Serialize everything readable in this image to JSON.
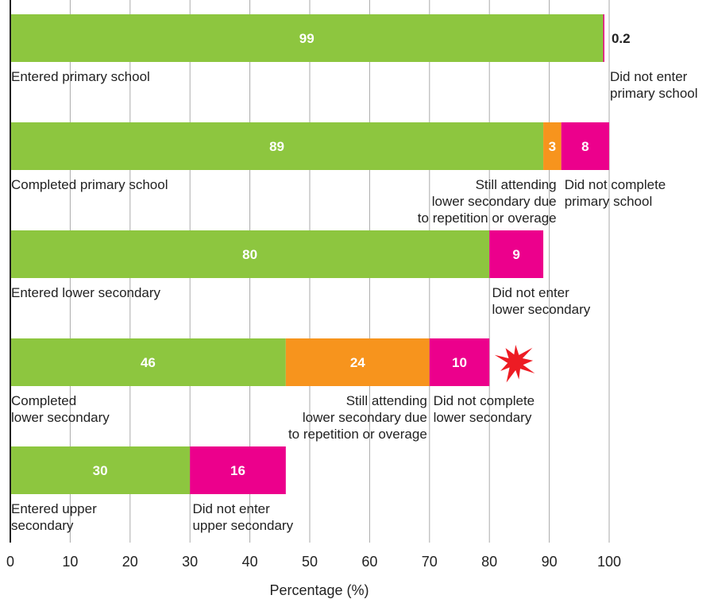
{
  "colors": {
    "completed": "#8dc63f",
    "still_attending": "#f7941d",
    "did_not": "#ec008c",
    "burst": "#ed1c24",
    "grid": "#aaaaaa",
    "axis": "#222222"
  },
  "icons": {
    "burst": "burst-icon"
  },
  "chart_data": {
    "type": "bar",
    "orientation": "horizontal",
    "stacked": true,
    "xlabel": "Percentage (%)",
    "ylabel": "",
    "xlim": [
      0,
      100
    ],
    "xticks": [
      "0",
      "10",
      "20",
      "30",
      "40",
      "50",
      "60",
      "70",
      "80",
      "90",
      "100"
    ],
    "grid": true,
    "rows": [
      {
        "segments": [
          {
            "value": 99,
            "label": "99",
            "kind": "completed"
          },
          {
            "value": 0.2,
            "label": "0.2",
            "kind": "did_not",
            "label_outside": true
          }
        ],
        "annotations": [
          {
            "text": [
              "Entered primary school"
            ],
            "at": 0,
            "align": "start"
          },
          {
            "text": [
              "Did not enter",
              "primary school"
            ],
            "at": 100,
            "align": "start"
          }
        ]
      },
      {
        "segments": [
          {
            "value": 89,
            "label": "89",
            "kind": "completed"
          },
          {
            "value": 3,
            "label": "3",
            "kind": "still_attending"
          },
          {
            "value": 8,
            "label": "8",
            "kind": "did_not"
          }
        ],
        "annotations": [
          {
            "text": [
              "Completed primary school"
            ],
            "at": 0,
            "align": "start"
          },
          {
            "text": [
              "Still attending",
              "lower secondary due",
              "to repetition or overage"
            ],
            "at": 91.2,
            "align": "end"
          },
          {
            "text": [
              "Did not complete",
              "primary school"
            ],
            "at": 92.4,
            "align": "start"
          }
        ]
      },
      {
        "segments": [
          {
            "value": 80,
            "label": "80",
            "kind": "completed"
          },
          {
            "value": 9,
            "label": "9",
            "kind": "did_not"
          }
        ],
        "annotations": [
          {
            "text": [
              "Entered lower secondary"
            ],
            "at": 0,
            "align": "start"
          },
          {
            "text": [
              "Did not enter",
              "lower secondary"
            ],
            "at": 80.3,
            "align": "start"
          }
        ]
      },
      {
        "segments": [
          {
            "value": 46,
            "label": "46",
            "kind": "completed"
          },
          {
            "value": 24,
            "label": "24",
            "kind": "still_attending"
          },
          {
            "value": 10,
            "label": "10",
            "kind": "did_not"
          }
        ],
        "burst_after": true,
        "annotations": [
          {
            "text": [
              "Completed",
              "lower secondary"
            ],
            "at": 0,
            "align": "start"
          },
          {
            "text": [
              "Still attending",
              "lower secondary due",
              "to repetition or overage"
            ],
            "at": 69.6,
            "align": "end"
          },
          {
            "text": [
              "Did not complete",
              "lower secondary"
            ],
            "at": 70.5,
            "align": "start"
          }
        ]
      },
      {
        "segments": [
          {
            "value": 30,
            "label": "30",
            "kind": "completed"
          },
          {
            "value": 16,
            "label": "16",
            "kind": "did_not"
          }
        ],
        "annotations": [
          {
            "text": [
              "Entered upper",
              "secondary"
            ],
            "at": 0,
            "align": "start"
          },
          {
            "text": [
              "Did not enter",
              "upper secondary"
            ],
            "at": 30.3,
            "align": "start"
          }
        ]
      }
    ]
  }
}
